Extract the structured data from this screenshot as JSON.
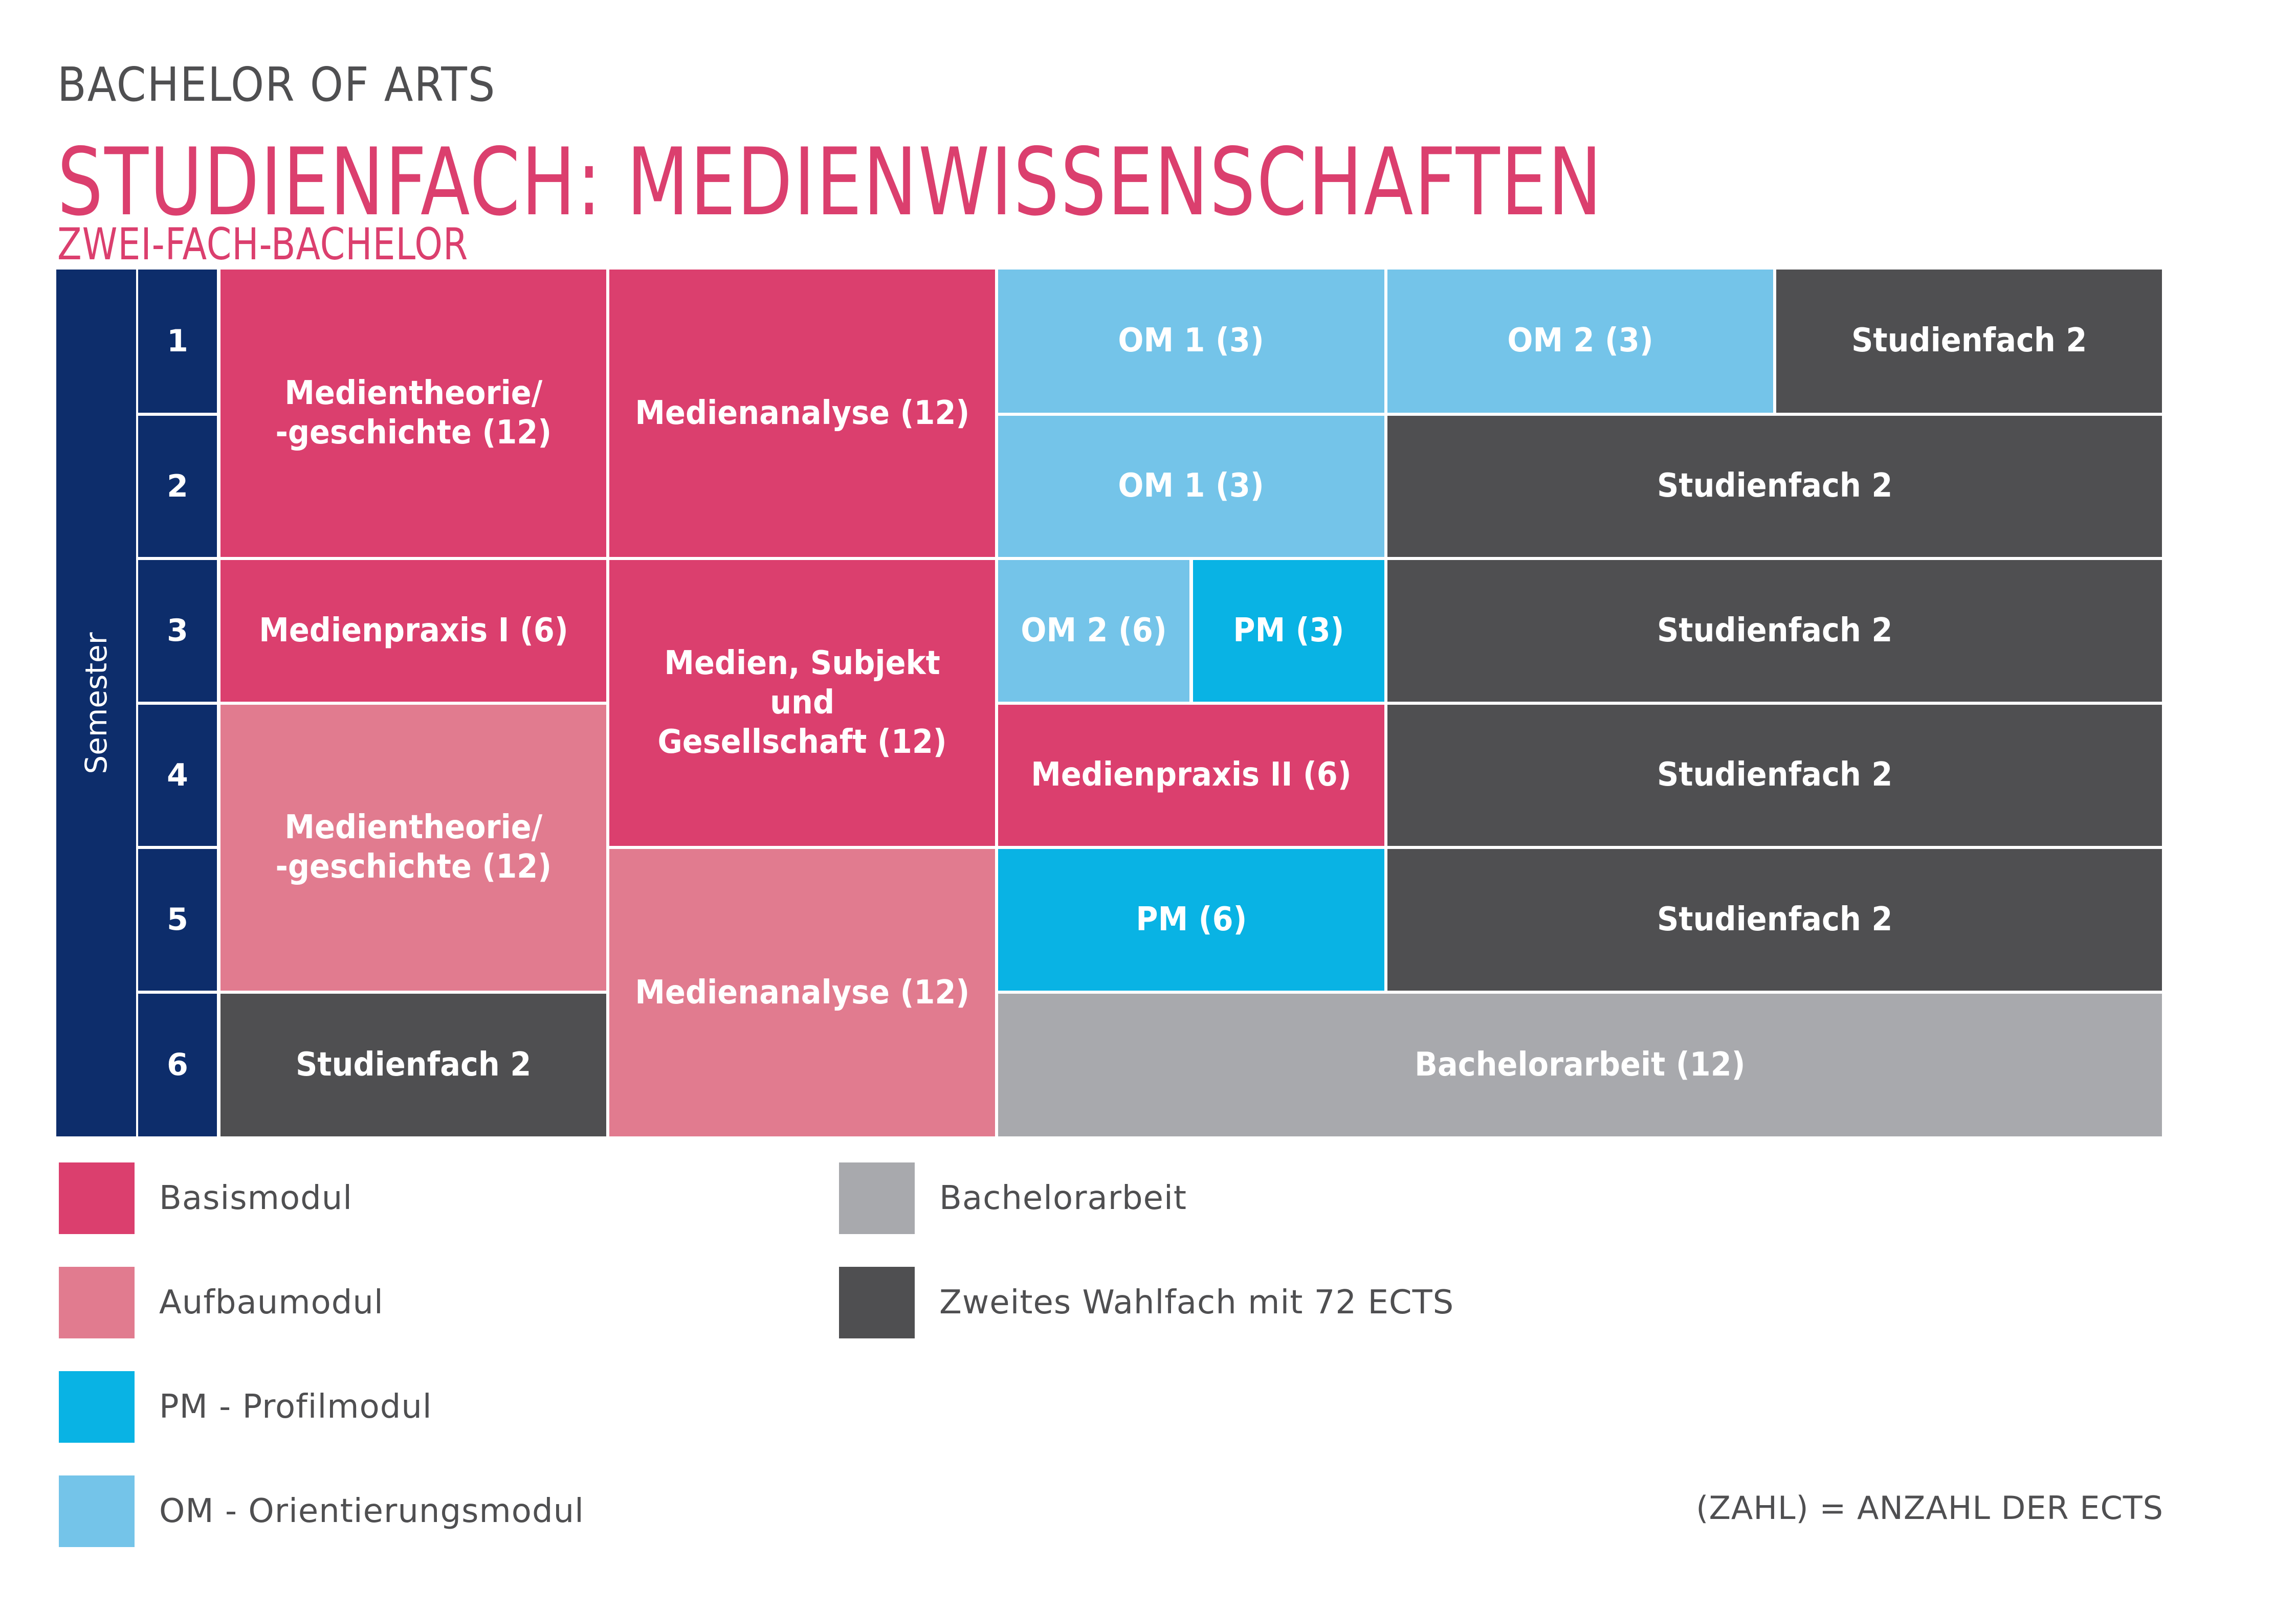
{
  "header": {
    "kicker": "BACHELOR OF ARTS",
    "title": "STUDIENFACH: MEDIENWISSENSCHAFTEN",
    "subtitle": "ZWEI-FACH-BACHELOR"
  },
  "colors": {
    "basismodul": "#db3f6e",
    "aufbaumodul": "#e17b8f",
    "profilmodul": "#09b3e4",
    "orientierungsmodul": "#74c4e9",
    "bachelorarbeit": "#a8a9ad",
    "studienfach2": "#4f4f51",
    "semester": "#0d2d6b",
    "text": "#4f4f51"
  },
  "plan": {
    "semester_label": "Semester",
    "semesters": [
      "1",
      "2",
      "3",
      "4",
      "5",
      "6"
    ],
    "columns": 8,
    "modules": [
      {
        "label": "Medientheorie/\n-geschichte (12)",
        "type": "basismodul",
        "ects": 12,
        "row": 1,
        "rowspan": 2,
        "col": 1,
        "colspan": 2
      },
      {
        "label": "Medienanalyse (12)",
        "type": "basismodul",
        "ects": 12,
        "row": 1,
        "rowspan": 2,
        "col": 3,
        "colspan": 2
      },
      {
        "label": "OM 1 (3)",
        "type": "orientierungsmodul",
        "ects": 3,
        "row": 1,
        "rowspan": 1,
        "col": 5,
        "colspan": 2
      },
      {
        "label": "OM 2 (3)",
        "type": "orientierungsmodul",
        "ects": 3,
        "row": 1,
        "rowspan": 1,
        "col": 7,
        "colspan": 2
      },
      {
        "label": "Studienfach 2",
        "type": "studienfach2",
        "ects": null,
        "row": 1,
        "rowspan": 1,
        "col": 9,
        "colspan": 2
      },
      {
        "label": "OM 1 (3)",
        "type": "orientierungsmodul",
        "ects": 3,
        "row": 2,
        "rowspan": 1,
        "col": 5,
        "colspan": 2
      },
      {
        "label": "Studienfach 2",
        "type": "studienfach2",
        "ects": null,
        "row": 2,
        "rowspan": 1,
        "col": 7,
        "colspan": 4
      },
      {
        "label": "Medienpraxis I (6)",
        "type": "basismodul",
        "ects": 6,
        "row": 3,
        "rowspan": 1,
        "col": 1,
        "colspan": 2
      },
      {
        "label": "Medien, Subjekt und\nGesellschaft (12)",
        "type": "basismodul",
        "ects": 12,
        "row": 3,
        "rowspan": 2,
        "col": 3,
        "colspan": 2
      },
      {
        "label": "OM 2 (6)",
        "type": "orientierungsmodul",
        "ects": 6,
        "row": 3,
        "rowspan": 1,
        "col": 5,
        "colspan": 1
      },
      {
        "label": "PM (3)",
        "type": "profilmodul",
        "ects": 3,
        "row": 3,
        "rowspan": 1,
        "col": 6,
        "colspan": 1
      },
      {
        "label": "Studienfach 2",
        "type": "studienfach2",
        "ects": null,
        "row": 3,
        "rowspan": 1,
        "col": 7,
        "colspan": 4
      },
      {
        "label": "Medientheorie/\n-geschichte (12)",
        "type": "aufbaumodul",
        "ects": 12,
        "row": 4,
        "rowspan": 2,
        "col": 1,
        "colspan": 2
      },
      {
        "label": "Medienpraxis II (6)",
        "type": "basismodul",
        "ects": 6,
        "row": 4,
        "rowspan": 1,
        "col": 5,
        "colspan": 2
      },
      {
        "label": "Studienfach 2",
        "type": "studienfach2",
        "ects": null,
        "row": 4,
        "rowspan": 1,
        "col": 7,
        "colspan": 4
      },
      {
        "label": "Medienanalyse (12)",
        "type": "aufbaumodul",
        "ects": 12,
        "row": 5,
        "rowspan": 2,
        "col": 3,
        "colspan": 2
      },
      {
        "label": "PM (6)",
        "type": "profilmodul",
        "ects": 6,
        "row": 5,
        "rowspan": 1,
        "col": 5,
        "colspan": 2
      },
      {
        "label": "Studienfach 2",
        "type": "studienfach2",
        "ects": null,
        "row": 5,
        "rowspan": 1,
        "col": 7,
        "colspan": 4
      },
      {
        "label": "Studienfach 2",
        "type": "studienfach2",
        "ects": null,
        "row": 6,
        "rowspan": 1,
        "col": 1,
        "colspan": 2
      },
      {
        "label": "Bachelorarbeit (12)",
        "type": "bachelorarbeit",
        "ects": 12,
        "row": 6,
        "rowspan": 1,
        "col": 5,
        "colspan": 6
      }
    ]
  },
  "legend": {
    "items": [
      {
        "label": "Basismodul",
        "type": "basismodul"
      },
      {
        "label": "Aufbaumodul",
        "type": "aufbaumodul"
      },
      {
        "label": "PM - Profilmodul",
        "type": "profilmodul"
      },
      {
        "label": "OM - Orientierungsmodul",
        "type": "orientierungsmodul"
      },
      {
        "label": "Bachelorarbeit",
        "type": "bachelorarbeit"
      },
      {
        "label": "Zweites Wahlfach mit 72 ECTS",
        "type": "studienfach2"
      }
    ]
  },
  "footnote": "(ZAHL) = ANZAHL DER ECTS"
}
